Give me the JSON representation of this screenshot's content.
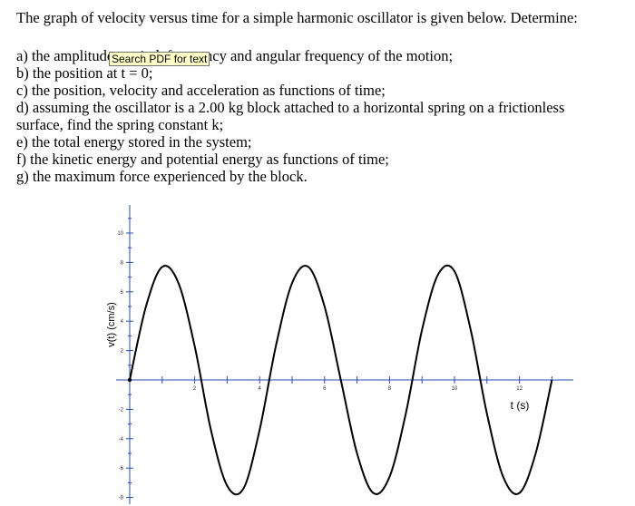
{
  "problem": {
    "intro": "The graph of velocity versus time for a simple harmonic oscillator is given below.  Determine:",
    "items": [
      "a) the amplitude, period, frequency and angular frequency of the motion;",
      "b) the position at t = 0;",
      "c) the position, velocity and acceleration as functions of time;",
      "d) assuming the oscillator is a 2.00 kg block attached to a horizontal spring on a frictionless",
      "surface, find the spring constant k;",
      "e) the total energy stored in the system;",
      "f) the kinetic energy and potential energy as functions of time;",
      "g) the maximum force experienced by the block."
    ]
  },
  "tooltip": "Search PDF for text",
  "chart_data": {
    "type": "line",
    "xlabel": "t (s)",
    "ylabel": "v(t)  (cm/s)",
    "xlim": [
      0,
      13
    ],
    "ylim": [
      -11,
      11
    ],
    "x_ticks": [
      "2",
      "4",
      "6",
      "8",
      "10",
      "12"
    ],
    "y_ticks": [
      "10",
      "8",
      "6",
      "4",
      "2",
      "-2",
      "-4",
      "-6",
      "-8"
    ],
    "series": [
      {
        "x": [
          0,
          0.5,
          1.0,
          1.5,
          2.0,
          2.5,
          3.0,
          3.5,
          4.0,
          4.5,
          5.0,
          5.5,
          6.0,
          6.5,
          7.0,
          7.5,
          8.0,
          8.5,
          9.0,
          9.5,
          10.0,
          10.5,
          11.0,
          11.5,
          12.0,
          12.5,
          13.0
        ],
        "y": [
          0,
          5.0,
          7.7,
          6.6,
          2.3,
          -3.4,
          -7.2,
          -7.4,
          -3.4,
          2.3,
          6.6,
          7.7,
          5.0,
          0,
          -5.0,
          -7.7,
          -6.6,
          -2.3,
          3.4,
          7.2,
          7.4,
          3.4,
          -2.3,
          -6.6,
          -7.7,
          -5.0,
          0
        ]
      }
    ]
  }
}
